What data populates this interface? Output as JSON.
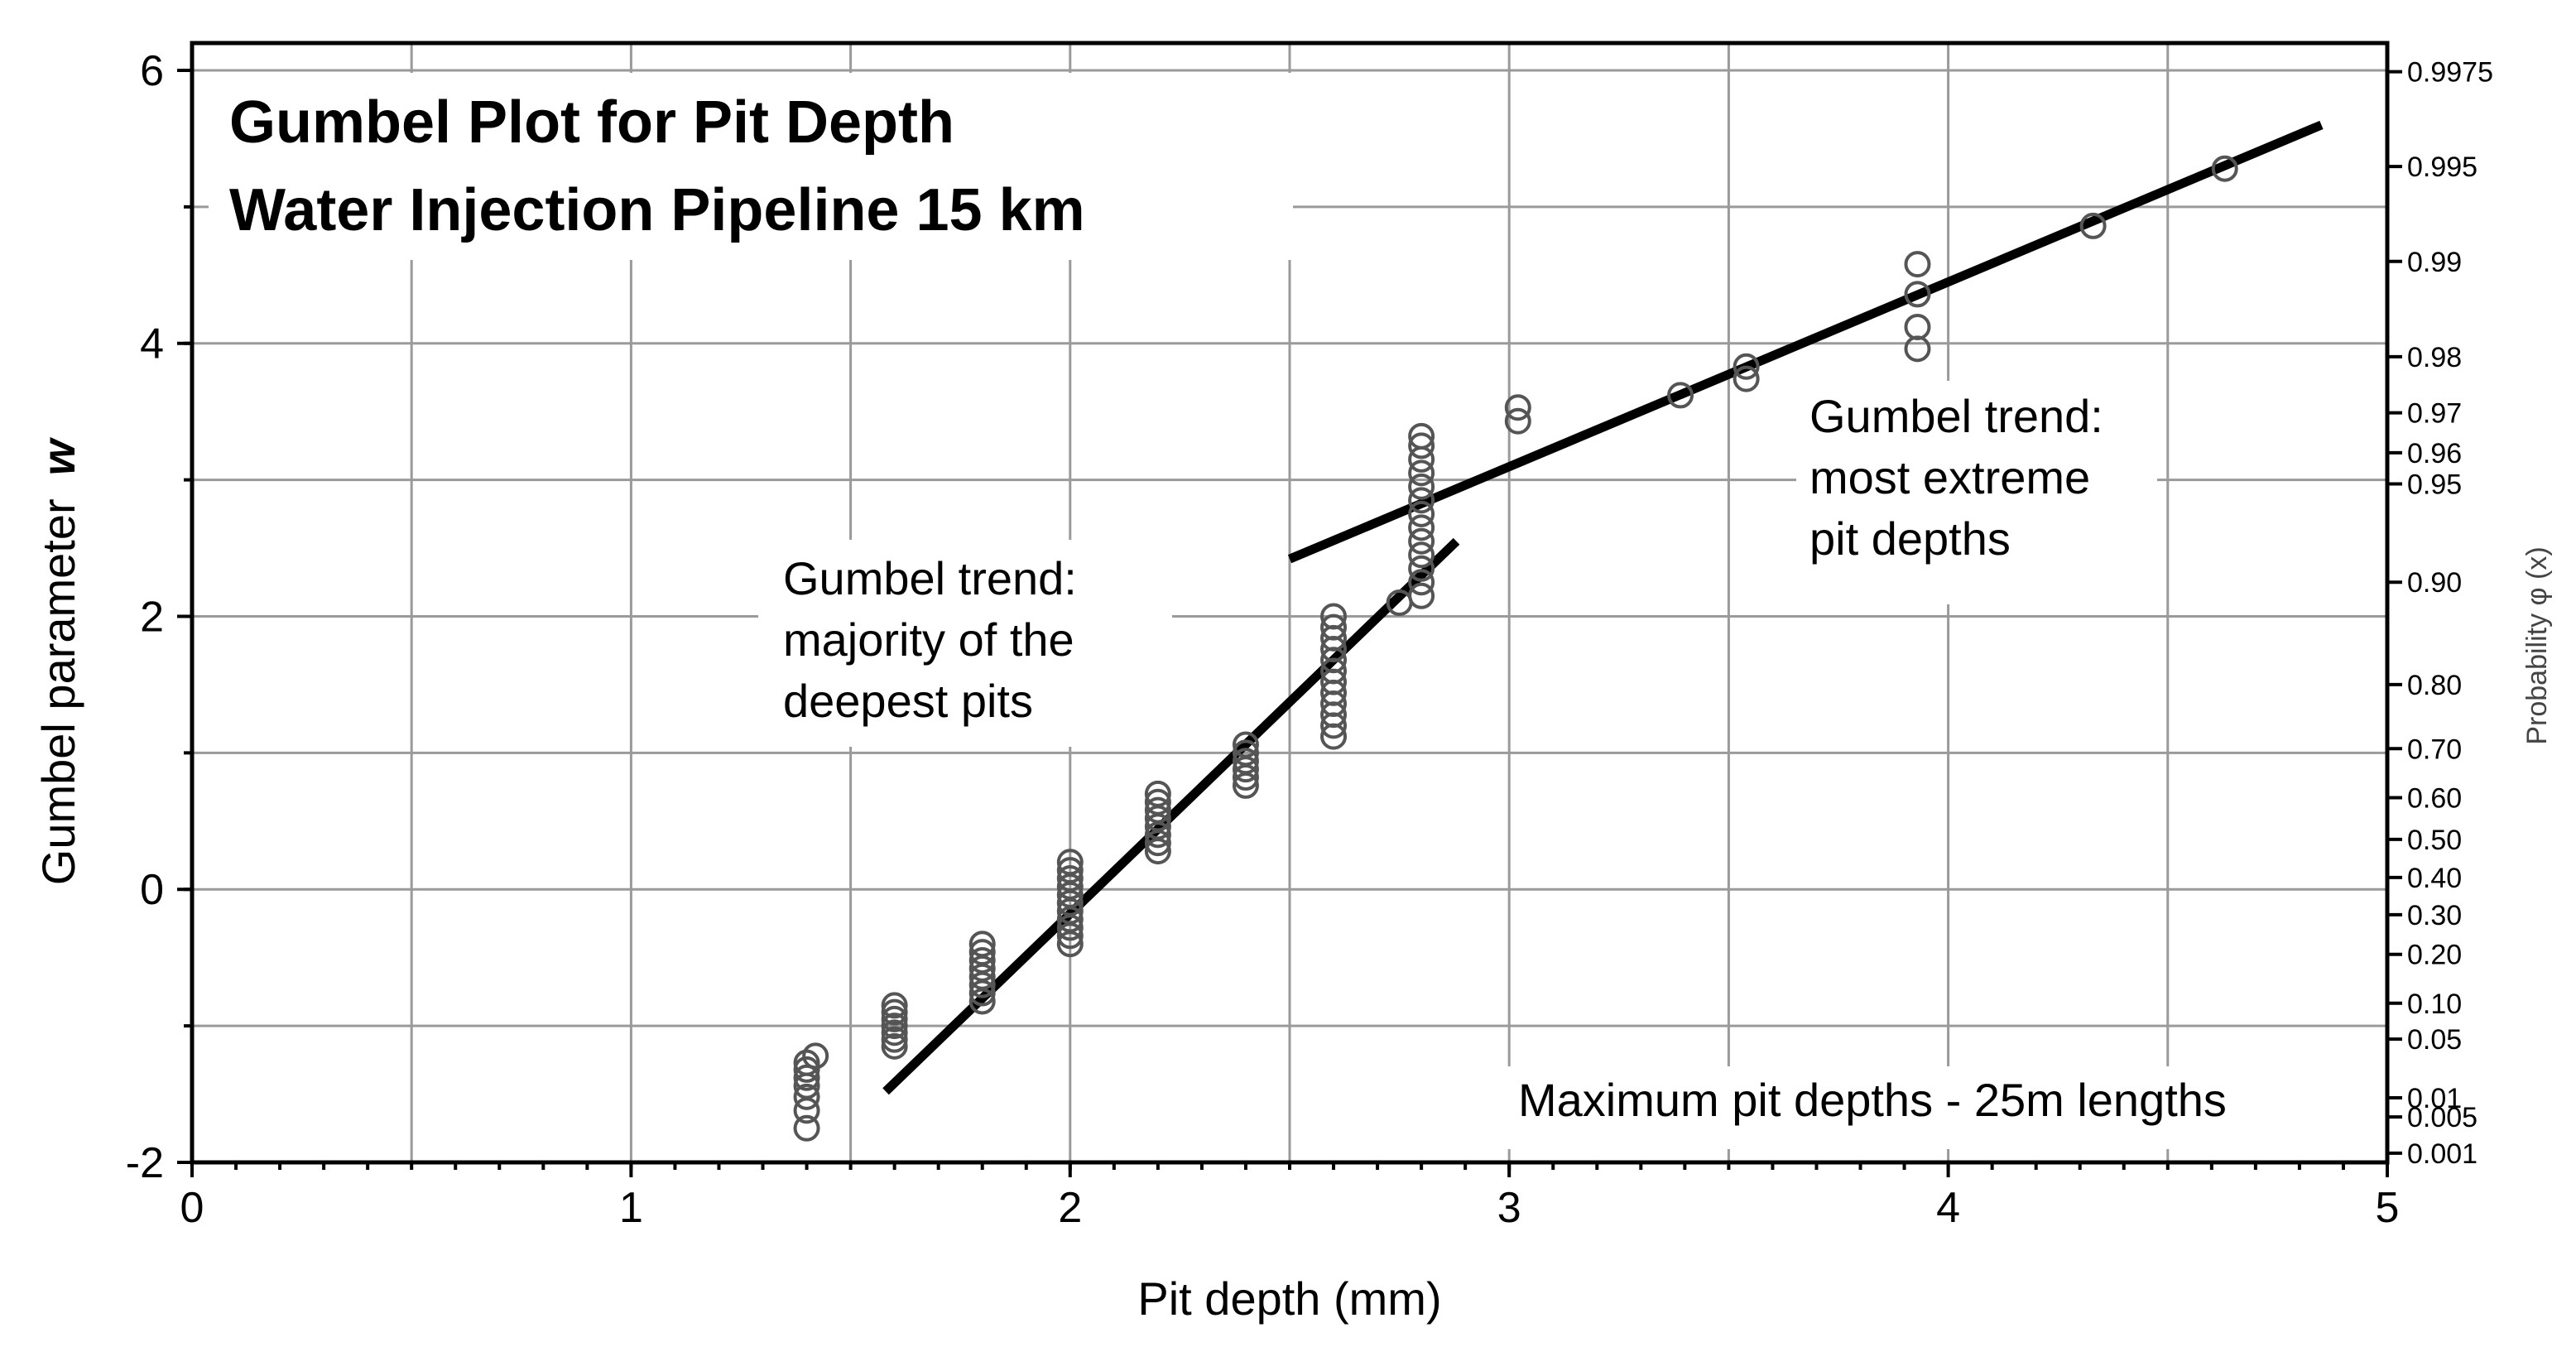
{
  "chart_data": {
    "type": "scatter",
    "title": [
      "Gumbel Plot for Pit Depth",
      "Water Injection Pipeline 15 km"
    ],
    "xlabel": "Pit depth (mm)",
    "ylabel": "Gumbel parameter",
    "ylabel_symbol": "w",
    "y2label": "Probability φ (x)",
    "xlim": [
      0,
      5
    ],
    "ylim": [
      -2,
      6.2
    ],
    "xticks": [
      "0",
      "1",
      "2",
      "3",
      "4",
      "5"
    ],
    "yticks": [
      "-2",
      "0",
      "2",
      "4",
      "6"
    ],
    "grid": true,
    "prob_ticks": [
      "0.001",
      "0.005",
      "0.01",
      "0.05",
      "0.10",
      "0.20",
      "0.30",
      "0.40",
      "0.50",
      "0.60",
      "0.70",
      "0.80",
      "0.90",
      "0.95",
      "0.96",
      "0.97",
      "0.98",
      "0.99",
      "0.995",
      "0.9975"
    ],
    "series": [
      {
        "name": "Maximum pit depths - 25m lengths",
        "marker": "open-circle",
        "points": [
          [
            1.4,
            -1.75
          ],
          [
            1.4,
            -1.62
          ],
          [
            1.4,
            -1.52
          ],
          [
            1.4,
            -1.44
          ],
          [
            1.4,
            -1.38
          ],
          [
            1.4,
            -1.32
          ],
          [
            1.4,
            -1.27
          ],
          [
            1.42,
            -1.22
          ],
          [
            1.6,
            -1.15
          ],
          [
            1.6,
            -1.1
          ],
          [
            1.6,
            -1.05
          ],
          [
            1.6,
            -1.0
          ],
          [
            1.6,
            -0.95
          ],
          [
            1.6,
            -0.9
          ],
          [
            1.6,
            -0.85
          ],
          [
            1.8,
            -0.82
          ],
          [
            1.8,
            -0.76
          ],
          [
            1.8,
            -0.7
          ],
          [
            1.8,
            -0.64
          ],
          [
            1.8,
            -0.58
          ],
          [
            1.8,
            -0.52
          ],
          [
            1.8,
            -0.46
          ],
          [
            1.8,
            -0.4
          ],
          [
            2.0,
            -0.4
          ],
          [
            2.0,
            -0.34
          ],
          [
            2.0,
            -0.28
          ],
          [
            2.0,
            -0.22
          ],
          [
            2.0,
            -0.16
          ],
          [
            2.0,
            -0.1
          ],
          [
            2.0,
            -0.04
          ],
          [
            2.0,
            0.02
          ],
          [
            2.0,
            0.08
          ],
          [
            2.0,
            0.14
          ],
          [
            2.0,
            0.2
          ],
          [
            2.2,
            0.28
          ],
          [
            2.2,
            0.34
          ],
          [
            2.2,
            0.4
          ],
          [
            2.2,
            0.46
          ],
          [
            2.2,
            0.52
          ],
          [
            2.2,
            0.58
          ],
          [
            2.2,
            0.64
          ],
          [
            2.2,
            0.7
          ],
          [
            2.4,
            0.76
          ],
          [
            2.4,
            0.82
          ],
          [
            2.4,
            0.88
          ],
          [
            2.4,
            0.94
          ],
          [
            2.4,
            1.0
          ],
          [
            2.4,
            1.06
          ],
          [
            2.6,
            1.12
          ],
          [
            2.6,
            1.2
          ],
          [
            2.6,
            1.28
          ],
          [
            2.6,
            1.36
          ],
          [
            2.6,
            1.44
          ],
          [
            2.6,
            1.52
          ],
          [
            2.6,
            1.6
          ],
          [
            2.6,
            1.68
          ],
          [
            2.6,
            1.76
          ],
          [
            2.6,
            1.84
          ],
          [
            2.6,
            1.92
          ],
          [
            2.6,
            2.0
          ],
          [
            2.75,
            2.1
          ],
          [
            2.8,
            2.15
          ],
          [
            2.8,
            2.25
          ],
          [
            2.8,
            2.35
          ],
          [
            2.8,
            2.45
          ],
          [
            2.8,
            2.55
          ],
          [
            2.8,
            2.65
          ],
          [
            2.8,
            2.75
          ],
          [
            2.8,
            2.85
          ],
          [
            2.8,
            2.95
          ],
          [
            2.8,
            3.05
          ],
          [
            2.8,
            3.15
          ],
          [
            2.8,
            3.25
          ],
          [
            2.8,
            3.32
          ],
          [
            3.02,
            3.43
          ],
          [
            3.02,
            3.53
          ],
          [
            3.39,
            3.62
          ],
          [
            3.54,
            3.74
          ],
          [
            3.54,
            3.83
          ],
          [
            3.93,
            3.96
          ],
          [
            3.93,
            4.12
          ],
          [
            3.93,
            4.36
          ],
          [
            3.93,
            4.58
          ],
          [
            4.33,
            4.86
          ],
          [
            4.63,
            5.28
          ]
        ]
      }
    ],
    "trend_lines": [
      {
        "name": "majority of the deepest pits",
        "x": [
          1.58,
          2.88
        ],
        "y": [
          -1.48,
          2.55
        ]
      },
      {
        "name": "most extreme pit depths",
        "x": [
          2.5,
          4.85
        ],
        "y": [
          2.42,
          5.6
        ]
      }
    ],
    "annotations": [
      {
        "id": "majority",
        "lines": [
          "Gumbel trend:",
          "majority of the",
          "deepest pits"
        ]
      },
      {
        "id": "extreme",
        "lines": [
          "Gumbel trend:",
          "most extreme",
          "pit depths"
        ]
      },
      {
        "id": "legend",
        "text": "Maximum pit depths - 25m lengths"
      }
    ]
  }
}
